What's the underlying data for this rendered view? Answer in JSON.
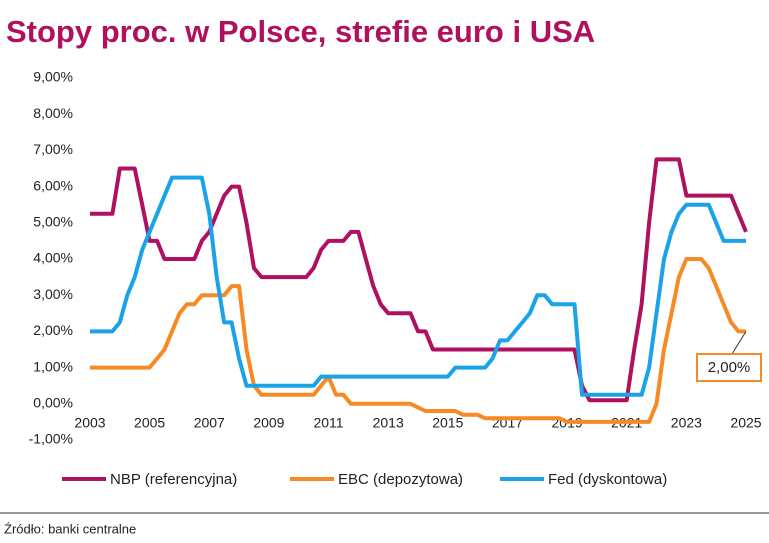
{
  "chart_data": {
    "type": "line",
    "title": "Stopy proc. w Polsce, strefie euro i USA",
    "source": "Źródło: banki centralne",
    "x": [
      2003,
      2003.25,
      2003.5,
      2003.75,
      2004,
      2004.25,
      2004.5,
      2004.75,
      2005,
      2005.25,
      2005.5,
      2005.75,
      2006,
      2006.25,
      2006.5,
      2006.75,
      2007,
      2007.25,
      2007.5,
      2007.75,
      2008,
      2008.25,
      2008.5,
      2008.75,
      2009,
      2009.25,
      2009.5,
      2009.75,
      2010,
      2010.25,
      2010.5,
      2010.75,
      2011,
      2011.25,
      2011.5,
      2011.75,
      2012,
      2012.25,
      2012.5,
      2012.75,
      2013,
      2013.25,
      2013.5,
      2013.75,
      2014,
      2014.25,
      2014.5,
      2014.75,
      2015,
      2015.25,
      2015.5,
      2015.75,
      2016,
      2016.25,
      2016.5,
      2016.75,
      2017,
      2017.25,
      2017.5,
      2017.75,
      2018,
      2018.25,
      2018.5,
      2018.75,
      2019,
      2019.25,
      2019.5,
      2019.75,
      2020,
      2020.25,
      2020.5,
      2020.75,
      2021,
      2021.25,
      2021.5,
      2021.75,
      2022,
      2022.25,
      2022.5,
      2022.75,
      2023,
      2023.25,
      2023.5,
      2023.75,
      2024,
      2024.25,
      2024.5,
      2024.75,
      2025
    ],
    "series": [
      {
        "name": "NBP (referencyjna)",
        "color": "#b0115e",
        "values": [
          5.25,
          5.25,
          5.25,
          5.25,
          6.5,
          6.5,
          6.5,
          5.5,
          4.5,
          4.5,
          4.0,
          4.0,
          4.0,
          4.0,
          4.0,
          4.5,
          4.75,
          5.25,
          5.75,
          6.0,
          6.0,
          5.0,
          3.75,
          3.5,
          3.5,
          3.5,
          3.5,
          3.5,
          3.5,
          3.5,
          3.75,
          4.25,
          4.5,
          4.5,
          4.5,
          4.75,
          4.75,
          4.0,
          3.25,
          2.75,
          2.5,
          2.5,
          2.5,
          2.5,
          2.0,
          2.0,
          1.5,
          1.5,
          1.5,
          1.5,
          1.5,
          1.5,
          1.5,
          1.5,
          1.5,
          1.5,
          1.5,
          1.5,
          1.5,
          1.5,
          1.5,
          1.5,
          1.5,
          1.5,
          1.5,
          1.5,
          0.5,
          0.1,
          0.1,
          0.1,
          0.1,
          0.1,
          0.1,
          1.5,
          2.75,
          5.0,
          6.75,
          6.75,
          6.75,
          6.75,
          5.75,
          5.75,
          5.75,
          5.75,
          5.75,
          5.75,
          5.75,
          5.25,
          4.75
        ]
      },
      {
        "name": "EBC (depozytowa)",
        "color": "#f68b26",
        "values": [
          1.0,
          1.0,
          1.0,
          1.0,
          1.0,
          1.0,
          1.0,
          1.0,
          1.0,
          1.25,
          1.5,
          2.0,
          2.5,
          2.75,
          2.75,
          3.0,
          3.0,
          3.0,
          3.0,
          3.25,
          3.25,
          1.5,
          0.5,
          0.25,
          0.25,
          0.25,
          0.25,
          0.25,
          0.25,
          0.25,
          0.25,
          0.5,
          0.75,
          0.25,
          0.25,
          0.0,
          0.0,
          0.0,
          0.0,
          0.0,
          0.0,
          0.0,
          0.0,
          0.0,
          -0.1,
          -0.2,
          -0.2,
          -0.2,
          -0.2,
          -0.2,
          -0.3,
          -0.3,
          -0.3,
          -0.4,
          -0.4,
          -0.4,
          -0.4,
          -0.4,
          -0.4,
          -0.4,
          -0.4,
          -0.4,
          -0.4,
          -0.4,
          -0.5,
          -0.5,
          -0.5,
          -0.5,
          -0.5,
          -0.5,
          -0.5,
          -0.5,
          -0.5,
          -0.5,
          -0.5,
          -0.5,
          0.0,
          1.5,
          2.5,
          3.5,
          4.0,
          4.0,
          4.0,
          3.75,
          3.25,
          2.75,
          2.25,
          2.0,
          2.0
        ]
      },
      {
        "name": "Fed (dyskontowa)",
        "color": "#1aa3e8",
        "values": [
          2.0,
          2.0,
          2.0,
          2.0,
          2.25,
          3.0,
          3.5,
          4.25,
          4.75,
          5.25,
          5.75,
          6.25,
          6.25,
          6.25,
          6.25,
          6.25,
          5.25,
          3.5,
          2.25,
          2.25,
          1.25,
          0.5,
          0.5,
          0.5,
          0.5,
          0.5,
          0.5,
          0.5,
          0.5,
          0.5,
          0.5,
          0.75,
          0.75,
          0.75,
          0.75,
          0.75,
          0.75,
          0.75,
          0.75,
          0.75,
          0.75,
          0.75,
          0.75,
          0.75,
          0.75,
          0.75,
          0.75,
          0.75,
          0.75,
          1.0,
          1.0,
          1.0,
          1.0,
          1.0,
          1.25,
          1.75,
          1.75,
          2.0,
          2.25,
          2.5,
          3.0,
          3.0,
          2.75,
          2.75,
          2.75,
          2.75,
          0.25,
          0.25,
          0.25,
          0.25,
          0.25,
          0.25,
          0.25,
          0.25,
          0.25,
          1.0,
          2.5,
          4.0,
          4.75,
          5.25,
          5.5,
          5.5,
          5.5,
          5.5,
          5.0,
          4.5,
          4.5,
          4.5,
          4.5
        ]
      }
    ],
    "annotation": "2,00%",
    "xlim": [
      2003,
      2025
    ],
    "xticks": [
      2003,
      2005,
      2007,
      2009,
      2011,
      2013,
      2015,
      2017,
      2019,
      2021,
      2023,
      2025
    ],
    "ylim": [
      -1,
      9
    ],
    "yticks": [
      {
        "value": -1,
        "label": "-1,00%"
      },
      {
        "value": 0,
        "label": "0,00%"
      },
      {
        "value": 1,
        "label": "1,00%"
      },
      {
        "value": 2,
        "label": "2,00%"
      },
      {
        "value": 3,
        "label": "3,00%"
      },
      {
        "value": 4,
        "label": "4,00%"
      },
      {
        "value": 5,
        "label": "5,00%"
      },
      {
        "value": 6,
        "label": "6,00%"
      },
      {
        "value": 7,
        "label": "7,00%"
      },
      {
        "value": 8,
        "label": "8,00%"
      },
      {
        "value": 9,
        "label": "9,00%"
      }
    ],
    "grid": false,
    "legend": "bottom"
  }
}
